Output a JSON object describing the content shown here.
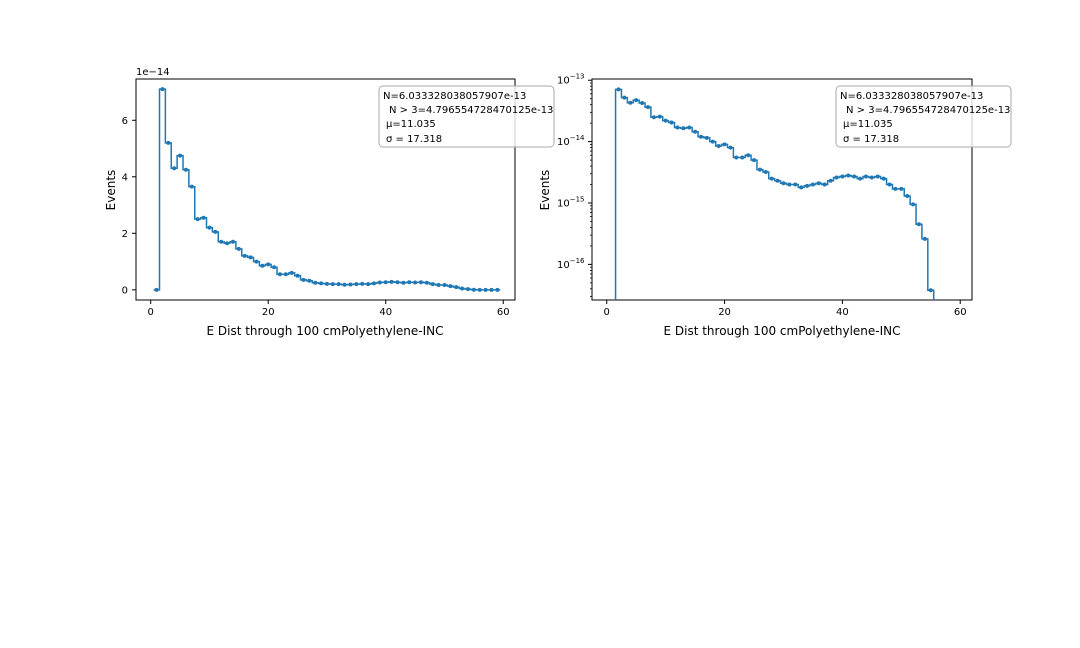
{
  "chart_data": [
    {
      "type": "line",
      "scale": "linear",
      "xlabel": "E Dist through 100 cmPolyethylene-INC",
      "ylabel": "Events",
      "xlim": [
        -2.5,
        62
      ],
      "ylim": [
        -3.6e-15,
        7.46e-14
      ],
      "x_ticks": [
        0,
        20,
        40,
        60
      ],
      "y_ticks": [
        0,
        2e-14,
        4e-14,
        6e-14
      ],
      "x_tick_labels": [
        "0",
        "20",
        "40",
        "60"
      ],
      "y_tick_labels": [
        "0",
        "2",
        "4",
        "6"
      ],
      "offset_label": "1e−14",
      "stats": {
        "line1": "N=6.033328038057907e-13",
        "line2": "N > 3=4.796554728470125e-13",
        "line3": "μ=11.035",
        "line4": "σ = 17.318"
      },
      "legend_position": "upper-right",
      "color": "#1f77b4"
    },
    {
      "type": "line",
      "scale": "log",
      "xlabel": "E Dist through 100 cmPolyethylene-INC",
      "ylabel": "Events",
      "xlim": [
        -2.5,
        62
      ],
      "ylim_log10": [
        -16.58,
        -12.98
      ],
      "x_ticks": [
        0,
        20,
        40,
        60
      ],
      "y_ticks_log10": [
        -16,
        -15,
        -14,
        -13
      ],
      "x_tick_labels": [
        "0",
        "20",
        "40",
        "60"
      ],
      "y_tick_labels": [
        "10",
        "10",
        "10",
        "10"
      ],
      "y_tick_exponents": [
        "−16",
        "−15",
        "−14",
        "−13"
      ],
      "stats": {
        "line1": "N=6.033328038057907e-13",
        "line2": "N > 3=4.796554728470125e-13",
        "line3": "μ=11.035",
        "line4": "σ = 17.318"
      },
      "legend_position": "upper-right",
      "color": "#1f77b4"
    }
  ],
  "histogram": {
    "bin_edges": [
      0.5,
      1.5,
      2.5,
      3.5,
      4.5,
      5.5,
      6.5,
      7.5,
      8.5,
      9.5,
      10.5,
      11.5,
      12.5,
      13.5,
      14.5,
      15.5,
      16.5,
      17.5,
      18.5,
      19.5,
      20.5,
      21.5,
      22.5,
      23.5,
      24.5,
      25.5,
      26.5,
      27.5,
      28.5,
      29.5,
      30.5,
      31.5,
      32.5,
      33.5,
      34.5,
      35.5,
      36.5,
      37.5,
      38.5,
      39.5,
      40.5,
      41.5,
      42.5,
      43.5,
      44.5,
      45.5,
      46.5,
      47.5,
      48.5,
      49.5,
      50.5,
      51.5,
      52.5,
      53.5,
      54.5,
      55.5,
      56.5,
      57.5,
      58.5,
      59.5
    ],
    "values": [
      0,
      7.1e-14,
      5.2e-14,
      4.3e-14,
      4.75e-14,
      4.25e-14,
      3.65e-14,
      2.5e-14,
      2.55e-14,
      2.2e-14,
      2.05e-14,
      1.7e-14,
      1.65e-14,
      1.7e-14,
      1.45e-14,
      1.2e-14,
      1.15e-14,
      1e-14,
      8.5e-15,
      9e-15,
      8e-15,
      5.5e-15,
      5.5e-15,
      6e-15,
      5e-15,
      3.5e-15,
      3.2e-15,
      2.5e-15,
      2.3e-15,
      2.1e-15,
      2e-15,
      2e-15,
      1.8e-15,
      1.9e-15,
      2e-15,
      2.1e-15,
      2e-15,
      2.3e-15,
      2.6e-15,
      2.7e-15,
      2.8e-15,
      2.7e-15,
      2.5e-15,
      2.7e-15,
      2.6e-15,
      2.7e-15,
      2.5e-15,
      2e-15,
      1.7e-15,
      1.7e-15,
      1.3e-15,
      9.5e-16,
      4.5e-16,
      2.6e-16,
      3.8e-17,
      0,
      0,
      0,
      0
    ]
  }
}
